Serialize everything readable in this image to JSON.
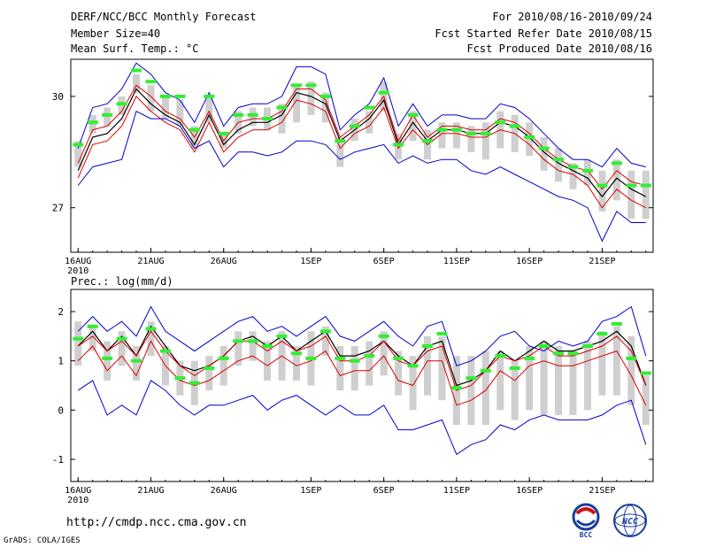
{
  "header": {
    "title": "DERF/NCC/BCC Monthly Forecast",
    "member_size": "Member Size=40",
    "variable": "Mean Surf. Temp.: °C",
    "period": "For 2010/08/16-2010/09/24",
    "fcst_started": "Fcst Started Refer Date 2010/08/15",
    "fcst_produced": "Fcst Produced Date 2010/08/16"
  },
  "footer": {
    "url": "http://cmdp.ncc.cma.gov.cn",
    "credit": "GrADS: COLA/IGES",
    "logo_bcc_text": "BCC",
    "logo_ncc_text": "NCC"
  },
  "colors": {
    "envelope": "#0000cc",
    "ens_mean": "#000000",
    "control": "#dd0000",
    "box": "#cfcfcf",
    "median": "#33ee33"
  },
  "chart_data": [
    {
      "type": "line",
      "title": "Mean Surf. Temp.: °C",
      "ylabel": "°C",
      "ylim": [
        25.8,
        31.0
      ],
      "yticks": [
        27,
        30
      ],
      "xlim": [
        15.5,
        55.5
      ],
      "xticks": [
        {
          "x": 16,
          "label": "16AUG"
        },
        {
          "x": 21,
          "label": "21AUG"
        },
        {
          "x": 26,
          "label": "26AUG"
        },
        {
          "x": 32,
          "label": "1SEP"
        },
        {
          "x": 37,
          "label": "6SEP"
        },
        {
          "x": 42,
          "label": "11SEP"
        },
        {
          "x": 47,
          "label": "16SEP"
        },
        {
          "x": 52,
          "label": "21SEP"
        }
      ],
      "year_label": "2010",
      "x": [
        16,
        17,
        18,
        19,
        20,
        21,
        22,
        23,
        24,
        25,
        26,
        27,
        28,
        29,
        30,
        31,
        32,
        33,
        34,
        35,
        36,
        37,
        38,
        39,
        40,
        41,
        42,
        43,
        44,
        45,
        46,
        47,
        48,
        49,
        50,
        51,
        52,
        53,
        54,
        55
      ],
      "series": [
        {
          "name": "max",
          "values": [
            28.6,
            29.7,
            29.8,
            30.2,
            30.9,
            30.6,
            30.1,
            29.9,
            29.3,
            30.1,
            29.2,
            29.7,
            29.8,
            29.8,
            30.0,
            30.8,
            30.8,
            30.6,
            29.1,
            29.5,
            29.8,
            30.5,
            29.2,
            29.8,
            29.2,
            29.5,
            29.5,
            29.4,
            29.4,
            29.8,
            29.7,
            29.4,
            29.0,
            28.6,
            28.3,
            28.3,
            28.1,
            28.6,
            28.2,
            28.1
          ]
        },
        {
          "name": "control",
          "values": [
            28.2,
            29.1,
            29.2,
            29.6,
            30.3,
            30.0,
            29.6,
            29.4,
            28.9,
            29.6,
            28.8,
            29.3,
            29.4,
            29.4,
            29.6,
            30.2,
            30.2,
            29.9,
            28.9,
            29.2,
            29.5,
            30.0,
            28.8,
            29.5,
            28.9,
            29.2,
            29.2,
            29.1,
            29.1,
            29.4,
            29.3,
            29.0,
            28.6,
            28.3,
            28.1,
            28.0,
            27.5,
            28.0,
            27.7,
            27.6
          ]
        },
        {
          "name": "ensemble mean",
          "values": [
            28.0,
            28.9,
            29.0,
            29.4,
            30.2,
            29.8,
            29.5,
            29.3,
            28.7,
            29.5,
            28.7,
            29.1,
            29.3,
            29.3,
            29.5,
            30.1,
            30.0,
            29.8,
            28.8,
            29.1,
            29.4,
            29.9,
            28.7,
            29.3,
            28.8,
            29.1,
            29.1,
            29.0,
            29.0,
            29.3,
            29.2,
            28.9,
            28.5,
            28.2,
            28.0,
            27.8,
            27.3,
            27.8,
            27.5,
            27.3
          ]
        },
        {
          "name": "min-member",
          "values": [
            27.8,
            28.7,
            28.8,
            29.2,
            30.0,
            29.6,
            29.3,
            29.1,
            28.5,
            29.3,
            28.5,
            28.9,
            29.1,
            29.1,
            29.3,
            29.9,
            29.8,
            29.6,
            28.6,
            29.0,
            29.2,
            29.7,
            28.6,
            29.1,
            28.7,
            29.0,
            29.0,
            28.9,
            28.9,
            29.1,
            29.0,
            28.7,
            28.3,
            28.0,
            27.9,
            27.6,
            27.0,
            27.5,
            27.2,
            27.0
          ]
        },
        {
          "name": "min",
          "values": [
            27.6,
            28.1,
            28.2,
            28.3,
            29.6,
            29.4,
            29.4,
            29.2,
            28.6,
            28.8,
            28.1,
            28.5,
            28.5,
            28.4,
            28.5,
            28.8,
            28.8,
            28.7,
            28.3,
            28.5,
            28.6,
            28.7,
            28.2,
            28.4,
            28.2,
            28.3,
            28.3,
            28.0,
            27.9,
            28.1,
            27.9,
            27.7,
            27.5,
            27.3,
            27.2,
            27.0,
            26.1,
            26.9,
            26.6,
            26.6
          ]
        }
      ],
      "boxes": {
        "low": [
          28.1,
          29.0,
          29.2,
          29.5,
          30.1,
          29.6,
          29.4,
          29.2,
          28.6,
          29.3,
          28.6,
          29.0,
          29.2,
          29.1,
          29.0,
          29.3,
          29.5,
          29.3,
          28.1,
          28.8,
          29.0,
          29.6,
          28.3,
          28.8,
          28.3,
          28.6,
          28.6,
          28.5,
          28.3,
          28.6,
          28.5,
          28.4,
          28.0,
          27.7,
          27.5,
          27.6,
          26.9,
          27.2,
          26.7,
          26.7
        ],
        "high": [
          28.8,
          29.5,
          29.7,
          30.0,
          30.6,
          30.3,
          30.0,
          29.9,
          29.2,
          30.0,
          29.0,
          29.6,
          29.7,
          29.7,
          29.8,
          30.3,
          30.4,
          30.1,
          28.9,
          29.4,
          29.6,
          30.4,
          29.0,
          29.6,
          29.1,
          29.3,
          29.3,
          29.2,
          29.3,
          29.6,
          29.5,
          29.3,
          28.9,
          28.6,
          28.2,
          28.3,
          28.0,
          28.3,
          28.0,
          28.0
        ]
      },
      "medians": [
        28.7,
        29.3,
        29.5,
        29.8,
        30.7,
        30.4,
        30.0,
        30.0,
        29.1,
        30.0,
        29.0,
        29.5,
        29.5,
        29.4,
        29.7,
        30.3,
        30.3,
        30.0,
        28.8,
        29.2,
        29.7,
        30.1,
        28.7,
        29.5,
        28.8,
        29.1,
        29.1,
        29.0,
        29.0,
        29.3,
        29.2,
        28.9,
        28.6,
        28.3,
        28.1,
        28.0,
        27.6,
        28.2,
        27.6,
        27.6
      ]
    },
    {
      "type": "line",
      "title": "Prec.: log(mm/d)",
      "ylabel": "log(mm/d)",
      "ylim": [
        -1.45,
        2.45
      ],
      "yticks": [
        -1,
        0,
        1,
        2
      ],
      "xlim": [
        15.5,
        55.5
      ],
      "xticks": [
        {
          "x": 16,
          "label": "16AUG"
        },
        {
          "x": 21,
          "label": "21AUG"
        },
        {
          "x": 26,
          "label": "26AUG"
        },
        {
          "x": 32,
          "label": "1SEP"
        },
        {
          "x": 37,
          "label": "6SEP"
        },
        {
          "x": 42,
          "label": "11SEP"
        },
        {
          "x": 47,
          "label": "16SEP"
        },
        {
          "x": 52,
          "label": "21SEP"
        }
      ],
      "year_label": "2010",
      "x": [
        16,
        17,
        18,
        19,
        20,
        21,
        22,
        23,
        24,
        25,
        26,
        27,
        28,
        29,
        30,
        31,
        32,
        33,
        34,
        35,
        36,
        37,
        38,
        39,
        40,
        41,
        42,
        43,
        44,
        45,
        46,
        47,
        48,
        49,
        50,
        51,
        52,
        53,
        54,
        55
      ],
      "series": [
        {
          "name": "max",
          "values": [
            1.6,
            1.9,
            1.6,
            1.8,
            1.5,
            2.1,
            1.6,
            1.4,
            1.2,
            1.4,
            1.6,
            1.8,
            1.9,
            1.6,
            1.7,
            1.5,
            1.7,
            1.9,
            1.5,
            1.4,
            1.6,
            1.8,
            1.5,
            1.3,
            1.7,
            1.8,
            0.9,
            1.0,
            1.2,
            1.5,
            1.6,
            1.3,
            1.2,
            1.4,
            1.3,
            1.4,
            1.8,
            1.9,
            2.1,
            1.1
          ]
        },
        {
          "name": "ensemble mean",
          "values": [
            1.3,
            1.6,
            1.2,
            1.5,
            1.1,
            1.7,
            1.3,
            0.9,
            0.8,
            0.9,
            1.1,
            1.4,
            1.5,
            1.3,
            1.5,
            1.2,
            1.4,
            1.6,
            1.1,
            1.1,
            1.2,
            1.4,
            1.1,
            0.9,
            1.3,
            1.4,
            0.5,
            0.6,
            0.8,
            1.2,
            1.0,
            1.2,
            1.4,
            1.2,
            1.2,
            1.3,
            1.4,
            1.6,
            1.3,
            0.5
          ]
        },
        {
          "name": "mean-alt",
          "values": [
            1.3,
            1.5,
            1.2,
            1.4,
            1.1,
            1.6,
            1.2,
            0.9,
            0.7,
            0.9,
            1.1,
            1.4,
            1.4,
            1.2,
            1.4,
            1.2,
            1.3,
            1.5,
            1.0,
            1.0,
            1.1,
            1.4,
            1.0,
            0.9,
            1.2,
            1.3,
            0.4,
            0.5,
            0.8,
            1.1,
            1.0,
            1.1,
            1.3,
            1.1,
            1.1,
            1.2,
            1.3,
            1.5,
            1.2,
            0.5
          ]
        },
        {
          "name": "control",
          "values": [
            1.0,
            1.3,
            0.8,
            1.1,
            0.7,
            1.4,
            0.9,
            0.6,
            0.5,
            0.6,
            0.8,
            1.0,
            1.1,
            0.9,
            1.1,
            0.9,
            1.0,
            1.2,
            0.7,
            0.8,
            0.8,
            1.1,
            0.6,
            0.5,
            1.0,
            1.0,
            0.1,
            0.2,
            0.4,
            0.8,
            0.6,
            0.9,
            1.0,
            0.9,
            0.9,
            1.0,
            1.1,
            1.2,
            0.7,
            0.1
          ]
        },
        {
          "name": "min",
          "values": [
            0.4,
            0.6,
            -0.1,
            0.1,
            -0.1,
            0.6,
            0.4,
            0.1,
            -0.1,
            0.1,
            0.1,
            0.2,
            0.3,
            0.0,
            0.2,
            0.3,
            0.1,
            -0.1,
            0.1,
            -0.1,
            -0.1,
            0.1,
            -0.4,
            -0.4,
            -0.3,
            -0.2,
            -0.9,
            -0.7,
            -0.6,
            -0.3,
            -0.4,
            -0.2,
            -0.1,
            -0.2,
            -0.2,
            -0.2,
            -0.1,
            0.1,
            0.2,
            -0.7
          ]
        }
      ],
      "boxes": {
        "low": [
          0.9,
          1.2,
          0.6,
          0.9,
          0.6,
          1.1,
          0.5,
          0.3,
          0.1,
          0.4,
          0.5,
          0.9,
          1.0,
          0.6,
          0.6,
          0.6,
          0.5,
          1.1,
          0.4,
          0.4,
          0.5,
          0.7,
          0.3,
          0.0,
          0.3,
          0.2,
          -0.3,
          -0.3,
          -0.3,
          0.0,
          -0.2,
          0.0,
          -0.1,
          -0.1,
          -0.1,
          0.0,
          0.3,
          0.3,
          0.1,
          -0.3
        ],
        "high": [
          1.8,
          1.7,
          1.4,
          1.6,
          1.3,
          1.8,
          1.3,
          1.0,
          1.0,
          1.1,
          1.3,
          1.6,
          1.6,
          1.4,
          1.6,
          1.3,
          1.6,
          1.7,
          1.3,
          1.3,
          1.4,
          1.6,
          1.2,
          1.1,
          1.5,
          1.5,
          1.1,
          1.1,
          1.2,
          1.2,
          1.0,
          1.3,
          1.4,
          1.3,
          1.2,
          1.4,
          1.6,
          1.7,
          1.5,
          0.7
        ]
      },
      "medians": [
        1.45,
        1.7,
        1.05,
        1.45,
        1.0,
        1.65,
        1.2,
        0.65,
        0.55,
        0.85,
        1.05,
        1.4,
        1.4,
        1.3,
        1.5,
        1.15,
        1.05,
        1.6,
        1.05,
        1.0,
        1.1,
        1.5,
        1.05,
        0.9,
        1.3,
        1.55,
        0.45,
        0.65,
        0.8,
        1.1,
        0.85,
        1.05,
        1.3,
        1.15,
        1.15,
        1.3,
        1.55,
        1.75,
        1.05,
        0.75
      ]
    }
  ]
}
